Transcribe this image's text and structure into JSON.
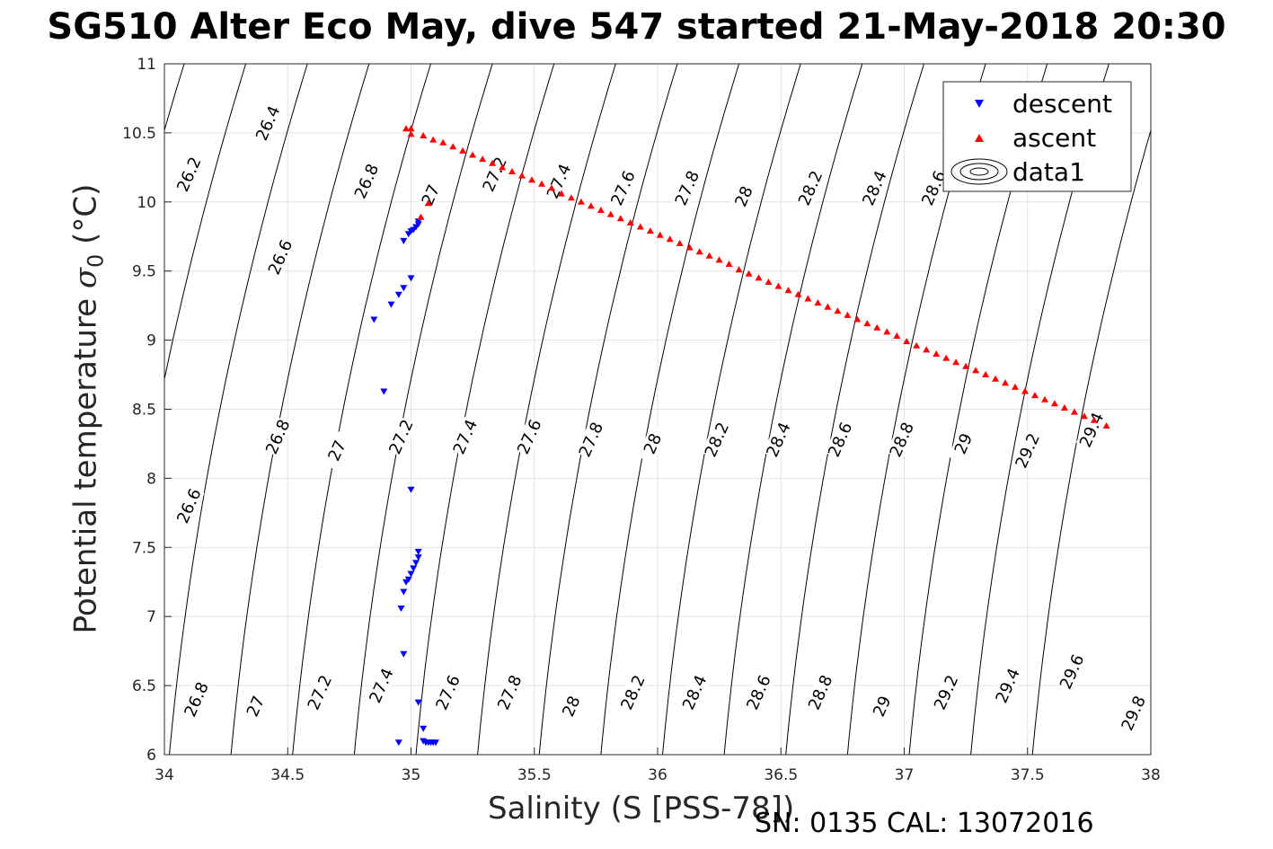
{
  "chart_data": {
    "type": "scatter",
    "title": "SG510 Alter Eco May, dive 547 started 21-May-2018 20:30",
    "xlabel": "Salinity (S [PSS-78])",
    "ylabel_main": "Potential temperature",
    "ylabel_symbol": "σ",
    "ylabel_sub": "0",
    "ylabel_unit": "(°C)",
    "footnote": "SN: 0135  CAL: 13072016",
    "xlim": [
      34,
      38
    ],
    "ylim": [
      6,
      11
    ],
    "xticks": [
      "34",
      "34.5",
      "35",
      "35.5",
      "36",
      "36.5",
      "37",
      "37.5",
      "38"
    ],
    "yticks": [
      "6",
      "6.5",
      "7",
      "7.5",
      "8",
      "8.5",
      "9",
      "9.5",
      "10",
      "10.5",
      "11"
    ],
    "grid": true,
    "legend_position": "top-right",
    "legend": [
      {
        "name": "descent",
        "marker": "triangle-down",
        "color": "#0000ff"
      },
      {
        "name": "ascent",
        "marker": "triangle-up",
        "color": "#ff0000"
      },
      {
        "name": "data1",
        "marker": "contour",
        "color": "#000000"
      }
    ],
    "series": [
      {
        "name": "descent",
        "color": "#0000ff",
        "marker": "triangle-down",
        "points": [
          [
            35.03,
            9.86
          ],
          [
            35.03,
            9.84
          ],
          [
            35.02,
            9.82
          ],
          [
            35.01,
            9.8
          ],
          [
            35.0,
            9.79
          ],
          [
            34.99,
            9.77
          ],
          [
            34.97,
            9.72
          ],
          [
            35.0,
            9.45
          ],
          [
            34.97,
            9.38
          ],
          [
            34.95,
            9.33
          ],
          [
            34.92,
            9.26
          ],
          [
            34.85,
            9.15
          ],
          [
            34.89,
            8.63
          ],
          [
            35.0,
            7.92
          ],
          [
            35.03,
            7.47
          ],
          [
            35.03,
            7.43
          ],
          [
            35.02,
            7.39
          ],
          [
            35.01,
            7.35
          ],
          [
            35.0,
            7.31
          ],
          [
            34.99,
            7.27
          ],
          [
            34.98,
            7.25
          ],
          [
            34.97,
            7.18
          ],
          [
            34.96,
            7.06
          ],
          [
            34.97,
            6.73
          ],
          [
            35.03,
            6.38
          ],
          [
            35.05,
            6.19
          ],
          [
            34.95,
            6.09
          ],
          [
            35.05,
            6.1
          ],
          [
            35.06,
            6.09
          ],
          [
            35.07,
            6.09
          ],
          [
            35.08,
            6.09
          ],
          [
            35.09,
            6.09
          ],
          [
            35.1,
            6.09
          ]
        ]
      },
      {
        "name": "ascent",
        "color": "#ff0000",
        "marker": "triangle-up",
        "points": [
          [
            34.98,
            10.53
          ],
          [
            35.0,
            10.53
          ],
          [
            35.0,
            10.49
          ],
          [
            35.04,
            9.89
          ],
          [
            35.07,
            9.99
          ],
          [
            35.05,
            10.48
          ],
          [
            35.09,
            10.45
          ],
          [
            35.13,
            10.43
          ],
          [
            35.17,
            10.4
          ],
          [
            35.21,
            10.37
          ],
          [
            35.25,
            10.34
          ],
          [
            35.29,
            10.31
          ],
          [
            35.33,
            10.28
          ],
          [
            35.37,
            10.25
          ],
          [
            35.41,
            10.22
          ],
          [
            35.45,
            10.19
          ],
          [
            35.49,
            10.16
          ],
          [
            35.53,
            10.13
          ],
          [
            35.57,
            10.1
          ],
          [
            35.61,
            10.06
          ],
          [
            35.65,
            10.03
          ],
          [
            35.69,
            10.0
          ],
          [
            35.73,
            9.97
          ],
          [
            35.77,
            9.94
          ],
          [
            35.81,
            9.91
          ],
          [
            35.85,
            9.88
          ],
          [
            35.89,
            9.85
          ],
          [
            35.93,
            9.82
          ],
          [
            35.97,
            9.79
          ],
          [
            36.01,
            9.76
          ],
          [
            36.05,
            9.73
          ],
          [
            36.09,
            9.7
          ],
          [
            36.13,
            9.67
          ],
          [
            36.17,
            9.64
          ],
          [
            36.21,
            9.61
          ],
          [
            36.25,
            9.58
          ],
          [
            36.29,
            9.55
          ],
          [
            36.33,
            9.51
          ],
          [
            36.37,
            9.48
          ],
          [
            36.41,
            9.45
          ],
          [
            36.45,
            9.42
          ],
          [
            36.49,
            9.39
          ],
          [
            36.53,
            9.36
          ],
          [
            36.57,
            9.33
          ],
          [
            36.61,
            9.3
          ],
          [
            36.65,
            9.27
          ],
          [
            36.69,
            9.24
          ],
          [
            36.73,
            9.21
          ],
          [
            36.77,
            9.18
          ],
          [
            36.81,
            9.15
          ],
          [
            36.85,
            9.12
          ],
          [
            36.89,
            9.09
          ],
          [
            36.93,
            9.06
          ],
          [
            36.97,
            9.03
          ],
          [
            37.01,
            8.99
          ],
          [
            37.05,
            8.96
          ],
          [
            37.09,
            8.93
          ],
          [
            37.13,
            8.9
          ],
          [
            37.17,
            8.87
          ],
          [
            37.21,
            8.84
          ],
          [
            37.25,
            8.81
          ],
          [
            37.29,
            8.78
          ],
          [
            37.33,
            8.75
          ],
          [
            37.37,
            8.72
          ],
          [
            37.41,
            8.69
          ],
          [
            37.45,
            8.66
          ],
          [
            37.49,
            8.63
          ],
          [
            37.53,
            8.6
          ],
          [
            37.57,
            8.57
          ],
          [
            37.61,
            8.54
          ],
          [
            37.65,
            8.51
          ],
          [
            37.69,
            8.48
          ],
          [
            37.73,
            8.45
          ],
          [
            37.77,
            8.42
          ],
          [
            37.82,
            8.38
          ]
        ]
      }
    ],
    "isopycnals": [
      {
        "x0": 33.02,
        "labels": [
          {
            "text": "26.2",
            "x": 34.1,
            "y": 10.2
          }
        ]
      },
      {
        "x0": 33.27,
        "labels": [
          {
            "text": "26.4",
            "x": 34.42,
            "y": 10.57
          }
        ]
      },
      {
        "x0": 33.52,
        "labels": [
          {
            "text": "26.6",
            "x": 34.1,
            "y": 7.8
          },
          {
            "text": "26.6",
            "x": 34.47,
            "y": 9.6
          }
        ]
      },
      {
        "x0": 33.77,
        "labels": [
          {
            "text": "26.8",
            "x": 34.13,
            "y": 6.4
          },
          {
            "text": "26.8",
            "x": 34.46,
            "y": 8.3
          },
          {
            "text": "26.8",
            "x": 34.82,
            "y": 10.15
          }
        ]
      },
      {
        "x0": 34.02,
        "labels": [
          {
            "text": "27",
            "x": 34.37,
            "y": 6.35
          },
          {
            "text": "27",
            "x": 34.7,
            "y": 8.2
          },
          {
            "text": "27",
            "x": 35.08,
            "y": 10.05
          }
        ]
      },
      {
        "x0": 34.27,
        "labels": [
          {
            "text": "27.2",
            "x": 34.63,
            "y": 6.45
          },
          {
            "text": "27.2",
            "x": 34.96,
            "y": 8.3
          },
          {
            "text": "27.2",
            "x": 35.34,
            "y": 10.2
          }
        ]
      },
      {
        "x0": 34.52,
        "labels": [
          {
            "text": "27.4",
            "x": 34.88,
            "y": 6.5
          },
          {
            "text": "27.4",
            "x": 35.22,
            "y": 8.3
          },
          {
            "text": "27.4",
            "x": 35.6,
            "y": 10.15
          }
        ]
      },
      {
        "x0": 34.77,
        "labels": [
          {
            "text": "27.6",
            "x": 35.15,
            "y": 6.45
          },
          {
            "text": "27.6",
            "x": 35.48,
            "y": 8.3
          },
          {
            "text": "27.6",
            "x": 35.86,
            "y": 10.1
          }
        ]
      },
      {
        "x0": 35.02,
        "labels": [
          {
            "text": "27.8",
            "x": 35.4,
            "y": 6.45
          },
          {
            "text": "27.8",
            "x": 35.73,
            "y": 8.28
          },
          {
            "text": "27.8",
            "x": 36.12,
            "y": 10.1
          }
        ]
      },
      {
        "x0": 35.27,
        "labels": [
          {
            "text": "28",
            "x": 35.65,
            "y": 6.35
          },
          {
            "text": "28",
            "x": 35.98,
            "y": 8.25
          },
          {
            "text": "28",
            "x": 36.35,
            "y": 10.04
          }
        ]
      },
      {
        "x0": 35.52,
        "labels": [
          {
            "text": "28.2",
            "x": 35.9,
            "y": 6.45
          },
          {
            "text": "28.2",
            "x": 36.24,
            "y": 8.28
          },
          {
            "text": "28.2",
            "x": 36.62,
            "y": 10.1
          }
        ]
      },
      {
        "x0": 35.77,
        "labels": [
          {
            "text": "28.4",
            "x": 36.15,
            "y": 6.45
          },
          {
            "text": "28.4",
            "x": 36.49,
            "y": 8.28
          },
          {
            "text": "28.4",
            "x": 36.88,
            "y": 10.1
          }
        ]
      },
      {
        "x0": 36.02,
        "labels": [
          {
            "text": "28.6",
            "x": 36.41,
            "y": 6.45
          },
          {
            "text": "28.6",
            "x": 36.74,
            "y": 8.28
          },
          {
            "text": "28.6",
            "x": 37.12,
            "y": 10.1
          }
        ]
      },
      {
        "x0": 36.27,
        "labels": [
          {
            "text": "28.8",
            "x": 36.66,
            "y": 6.45
          },
          {
            "text": "28.8",
            "x": 36.99,
            "y": 8.28
          }
        ]
      },
      {
        "x0": 36.52,
        "labels": [
          {
            "text": "29",
            "x": 36.91,
            "y": 6.35
          },
          {
            "text": "29",
            "x": 37.24,
            "y": 8.25
          }
        ]
      },
      {
        "x0": 36.77,
        "labels": [
          {
            "text": "29.2",
            "x": 37.17,
            "y": 6.45
          },
          {
            "text": "29.2",
            "x": 37.5,
            "y": 8.2
          }
        ]
      },
      {
        "x0": 37.02,
        "labels": [
          {
            "text": "29.4",
            "x": 37.42,
            "y": 6.5
          },
          {
            "text": "29.4",
            "x": 37.76,
            "y": 8.35
          }
        ]
      },
      {
        "x0": 37.27,
        "labels": [
          {
            "text": "29.6",
            "x": 37.68,
            "y": 6.6
          }
        ]
      },
      {
        "x0": 37.52,
        "labels": [
          {
            "text": "29.8",
            "x": 37.93,
            "y": 6.3
          }
        ]
      }
    ]
  }
}
